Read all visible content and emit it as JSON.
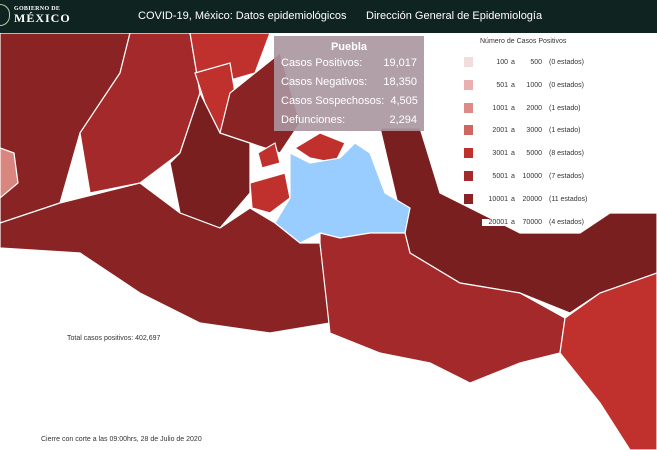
{
  "header": {
    "logo_top": "GOBIERNO DE",
    "logo_main": "MÉXICO",
    "title": "COVID-19, México: Datos epidemiológicos",
    "org": "Dirección General de Epidemiología"
  },
  "tooltip": {
    "state": "Puebla",
    "rows": [
      {
        "label": "Casos Positivos:",
        "value": "19,017"
      },
      {
        "label": "Casos Negativos:",
        "value": "18,350"
      },
      {
        "label": "Casos Sospechosos:",
        "value": "4,505"
      },
      {
        "label": "Defunciones:",
        "value": "2,294"
      }
    ]
  },
  "legend": {
    "title": "Número de Casos Positivos",
    "items": [
      {
        "from": "100",
        "a": "a",
        "to": "500",
        "count": "(0 estados)",
        "color": "#f3dcdc"
      },
      {
        "from": "501",
        "a": "a",
        "to": "1000",
        "count": "(0 estados)",
        "color": "#e8b0b0"
      },
      {
        "from": "1001",
        "a": "a",
        "to": "2000",
        "count": "(1 estado)",
        "color": "#de8a86"
      },
      {
        "from": "2001",
        "a": "a",
        "to": "3000",
        "count": "(1 estado)",
        "color": "#d06660"
      },
      {
        "from": "3001",
        "a": "a",
        "to": "5000",
        "count": "(8 estados)",
        "color": "#c0312e"
      },
      {
        "from": "5001",
        "a": "a",
        "to": "10000",
        "count": "(7 estados)",
        "color": "#a4292a"
      },
      {
        "from": "10001",
        "a": "a",
        "to": "20000",
        "count": "(11 estados)",
        "color": "#8a2324"
      },
      {
        "from": "20001",
        "a": "a",
        "to": "70000",
        "count": "(4 estados)",
        "color": "#7a1f1f"
      }
    ]
  },
  "colors": {
    "selected": "#99ccff",
    "dark": "#7a1f1f",
    "medium": "#a4292a",
    "red": "#c0312e",
    "light": "#d98680"
  },
  "total": "Total casos positivos: 402,697",
  "cutoff": "Cierre con corte a las 09:00hrs, 28 de Julio de 2020"
}
